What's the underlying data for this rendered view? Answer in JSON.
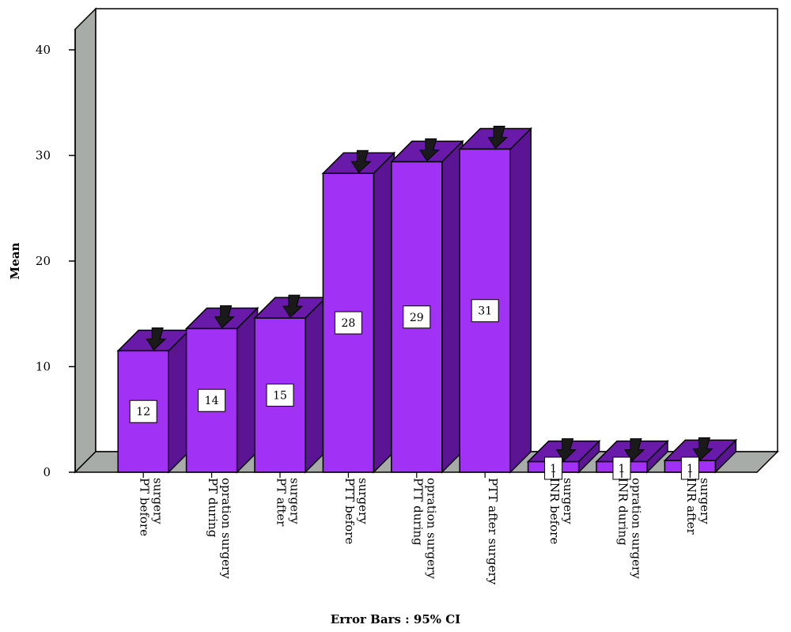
{
  "chart_data": {
    "type": "bar",
    "title": "",
    "ylabel": "Mean",
    "xlabel": "Error Bars : 95% CI",
    "ylim": [
      0,
      40
    ],
    "yticks": [
      0,
      10,
      20,
      30,
      40
    ],
    "categories": [
      [
        "PT before",
        "surgery"
      ],
      [
        "PT during",
        "opration surgery"
      ],
      [
        "PT after",
        "surgery"
      ],
      [
        "PTT before",
        "surgery"
      ],
      [
        "PTT  during",
        "opration surgery"
      ],
      [
        "PTT after surgery"
      ],
      [
        "INR before",
        "surgery"
      ],
      [
        "INR during",
        "opration surgery"
      ],
      [
        "INR after",
        "surgery"
      ]
    ],
    "values": [
      11.5,
      13.6,
      14.6,
      28.3,
      29.4,
      30.6,
      1.0,
      1.0,
      1.1
    ],
    "data_labels": [
      "12",
      "14",
      "15",
      "28",
      "29",
      "31",
      "1",
      "1",
      "1"
    ],
    "error_bars": "95% CI",
    "colors": {
      "bar_front": "#a131f4",
      "bar_top": "#6a1aa8",
      "bar_side": "#5b1594",
      "wall": "#ffffff",
      "floor": "#a8aca8",
      "error_bar": "#1a1a1a"
    }
  }
}
